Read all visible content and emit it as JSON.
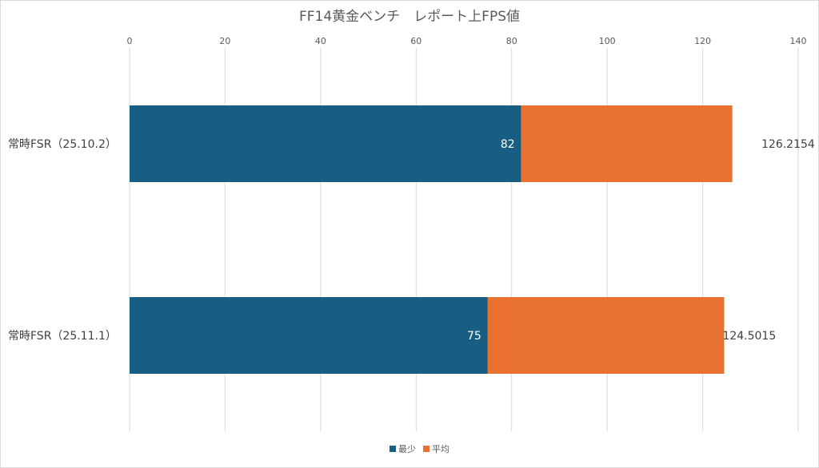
{
  "chart_data": {
    "type": "bar",
    "orientation": "horizontal",
    "stacked": true,
    "title": "FF14黄金ベンチ　レポート上FPS値",
    "categories": [
      "常時FSR（25.10.2）",
      "常時FSR（25.11.1）"
    ],
    "series": [
      {
        "name": "最少",
        "values": [
          82,
          75
        ],
        "color": "#175e82",
        "label_text": [
          "82",
          "75"
        ]
      },
      {
        "name": "平均",
        "values": [
          44.2154,
          49.5015
        ],
        "color": "#e97132",
        "label_text": [
          "126.2154",
          "124.5015"
        ]
      }
    ],
    "xlim": [
      0,
      140
    ],
    "xticks": [
      "0",
      "20",
      "40",
      "60",
      "80",
      "100",
      "120",
      "140"
    ],
    "x_axis_position": "top",
    "grid": true,
    "legend": "bottom"
  }
}
